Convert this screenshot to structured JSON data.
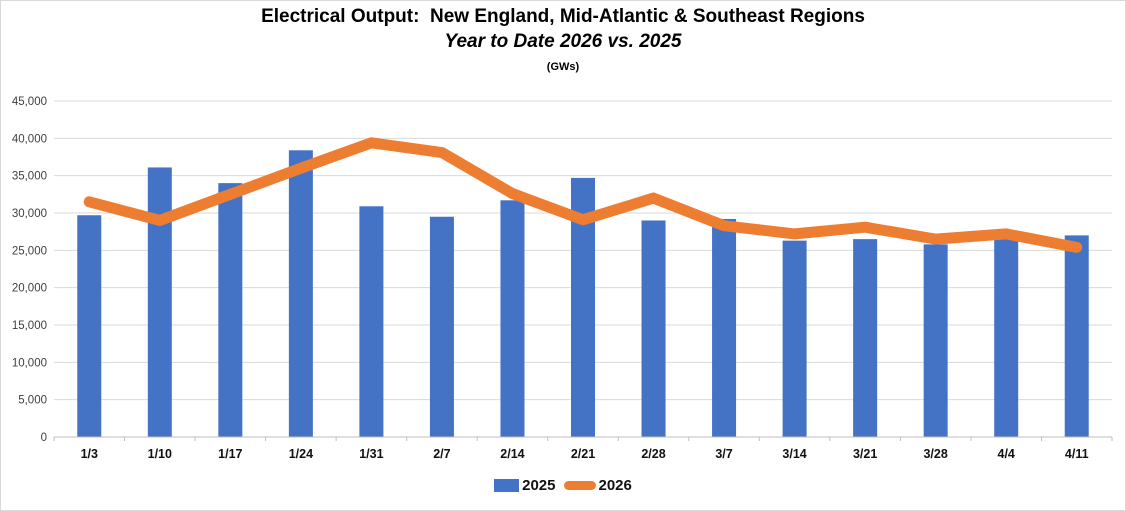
{
  "header": {
    "title": "Electrical Output:  New England, Mid-Atlantic & Southeast Regions",
    "subtitle": "Year to Date 2026 vs. 2025",
    "units": "(GWs)"
  },
  "legend": [
    {
      "label": "2025",
      "swatch": "bar-swatch",
      "color": "#4472C4"
    },
    {
      "label": "2026",
      "swatch": "line-swatch",
      "color": "#ED7D31"
    }
  ],
  "chart_data": {
    "type": "bar",
    "combo": "bar+line",
    "title": "Electrical Output:  New England, Mid-Atlantic & Southeast Regions",
    "subtitle": "Year to Date 2026 vs. 2025",
    "units_label": "(GWs)",
    "categories": [
      "1/3",
      "1/10",
      "1/17",
      "1/24",
      "1/31",
      "2/7",
      "2/14",
      "2/21",
      "2/28",
      "3/7",
      "3/14",
      "3/21",
      "3/28",
      "4/4",
      "4/11"
    ],
    "series": [
      {
        "name": "2025",
        "type": "bar",
        "color": "#4472C4",
        "values": [
          29700,
          36100,
          34000,
          38400,
          30900,
          29500,
          31700,
          34700,
          29000,
          29200,
          26300,
          26500,
          25800,
          26800,
          27000
        ]
      },
      {
        "name": "2026",
        "type": "line",
        "color": "#ED7D31",
        "values": [
          31500,
          29000,
          32500,
          36000,
          39400,
          38100,
          32600,
          29100,
          32000,
          28300,
          27200,
          28100,
          26500,
          27200,
          25400
        ]
      }
    ],
    "xlabel": "",
    "ylabel": "",
    "ylim": [
      0,
      45000
    ],
    "ytick_interval": 5000,
    "ytick_labels": [
      "0",
      "5,000",
      "10,000",
      "15,000",
      "20,000",
      "25,000",
      "30,000",
      "35,000",
      "40,000",
      "45,000"
    ],
    "grid": true,
    "gridline_color": "#d9d9d9",
    "axis_color": "#bfbfbf",
    "legend_position": "bottom"
  }
}
